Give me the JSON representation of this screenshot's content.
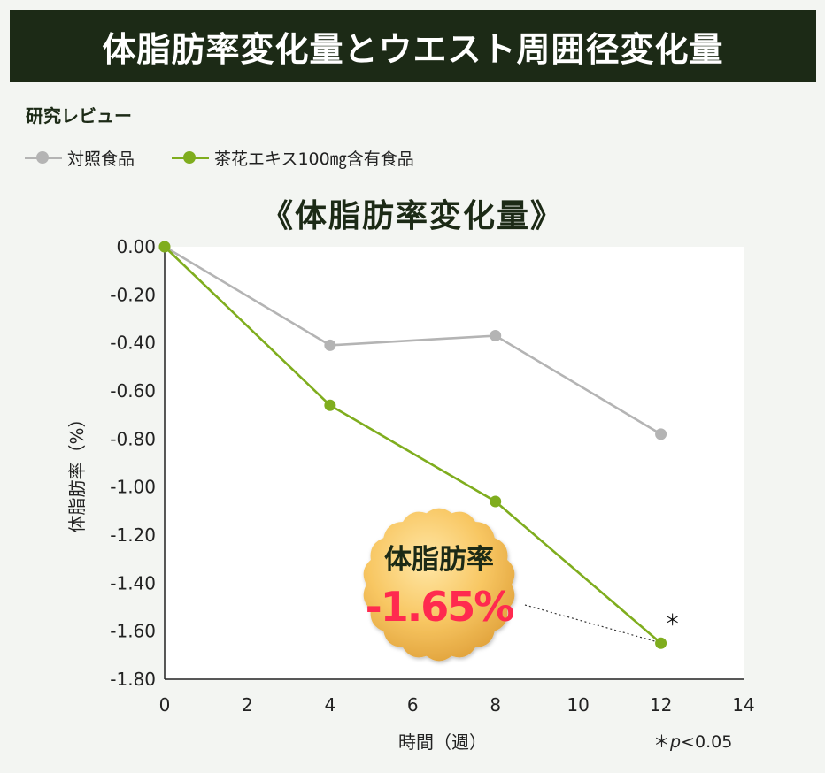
{
  "header": {
    "title": "体脂肪率変化量とウエスト周囲径変化量"
  },
  "subtitle": "研究レビュー",
  "chart_heading": "《体脂肪率変化量》",
  "colors": {
    "dark": "#1c2a16",
    "control": "#b4b4b4",
    "test": "#7fad1e",
    "highlight": "#ff2a4f",
    "badge_light": "#ffd98a",
    "badge_dark": "#e4a63a"
  },
  "badge": {
    "label": "体脂肪率",
    "value": "-1.65%"
  },
  "significance_note": {
    "symbol": "＊",
    "p": "p",
    "rest": "<0.05"
  },
  "chart_data": {
    "type": "line",
    "xlabel": "時間（週）",
    "ylabel": "体脂肪率（%）",
    "xlim": [
      0,
      14
    ],
    "ylim": [
      -1.8,
      0
    ],
    "x_ticks": [
      0,
      2,
      4,
      6,
      8,
      10,
      12,
      14
    ],
    "y_ticks": [
      0,
      -0.2,
      -0.4,
      -0.6,
      -0.8,
      -1.0,
      -1.2,
      -1.4,
      -1.6,
      -1.8
    ],
    "series": [
      {
        "name": "対照食品",
        "color": "#b4b4b4",
        "x": [
          0,
          4,
          8,
          12
        ],
        "values": [
          0,
          -0.41,
          -0.37,
          -0.78
        ]
      },
      {
        "name": "茶花エキス100㎎含有食品",
        "color": "#7fad1e",
        "x": [
          0,
          4,
          8,
          12
        ],
        "values": [
          0,
          -0.66,
          -1.06,
          -1.65
        ]
      }
    ],
    "annotations": [
      {
        "text": "＊",
        "x": 12,
        "y": -1.65
      }
    ],
    "grid": false,
    "legend": "top-left"
  }
}
